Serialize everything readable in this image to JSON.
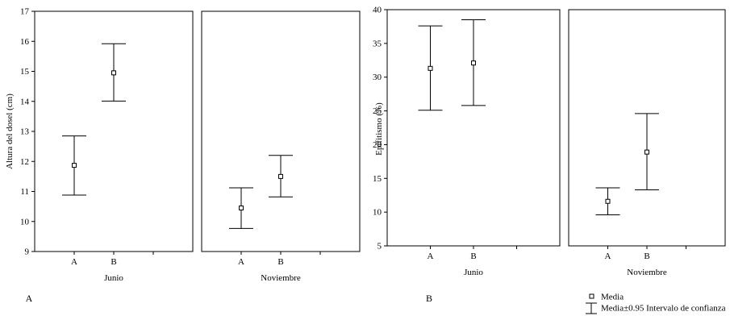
{
  "chart_data": [
    {
      "type": "errorbar",
      "panel_label": "A",
      "ylabel": "Altura del dosel (cm)",
      "ylim": [
        9,
        17
      ],
      "yticks": [
        9,
        10,
        11,
        12,
        13,
        14,
        15,
        16,
        17
      ],
      "categories": [
        "A",
        "B"
      ],
      "xlim": [
        0,
        4
      ],
      "facets": [
        {
          "label": "Junio",
          "points": [
            {
              "category": "A",
              "mean": 11.87,
              "low": 10.88,
              "high": 12.85
            },
            {
              "category": "B",
              "mean": 14.95,
              "low": 14.01,
              "high": 15.92
            }
          ]
        },
        {
          "label": "Noviembre",
          "points": [
            {
              "category": "A",
              "mean": 10.45,
              "low": 9.77,
              "high": 11.12
            },
            {
              "category": "B",
              "mean": 11.5,
              "low": 10.82,
              "high": 12.2
            }
          ]
        }
      ]
    },
    {
      "type": "errorbar",
      "panel_label": "B",
      "ylabel": "Epifitismo (%)",
      "ylim": [
        5,
        40
      ],
      "yticks": [
        5,
        10,
        15,
        20,
        25,
        30,
        35,
        40
      ],
      "categories": [
        "A",
        "B"
      ],
      "xlim": [
        0,
        4
      ],
      "facets": [
        {
          "label": "Junio",
          "points": [
            {
              "category": "A",
              "mean": 31.3,
              "low": 25.1,
              "high": 37.6
            },
            {
              "category": "B",
              "mean": 32.1,
              "low": 25.8,
              "high": 38.5
            }
          ]
        },
        {
          "label": "Noviembre",
          "points": [
            {
              "category": "A",
              "mean": 11.6,
              "low": 9.6,
              "high": 13.6
            },
            {
              "category": "B",
              "mean": 18.9,
              "low": 13.3,
              "high": 24.6
            }
          ]
        }
      ]
    }
  ],
  "legend": {
    "mean_label": "Media",
    "ci_label": "Media±0.95 Intervalo de confianza"
  }
}
